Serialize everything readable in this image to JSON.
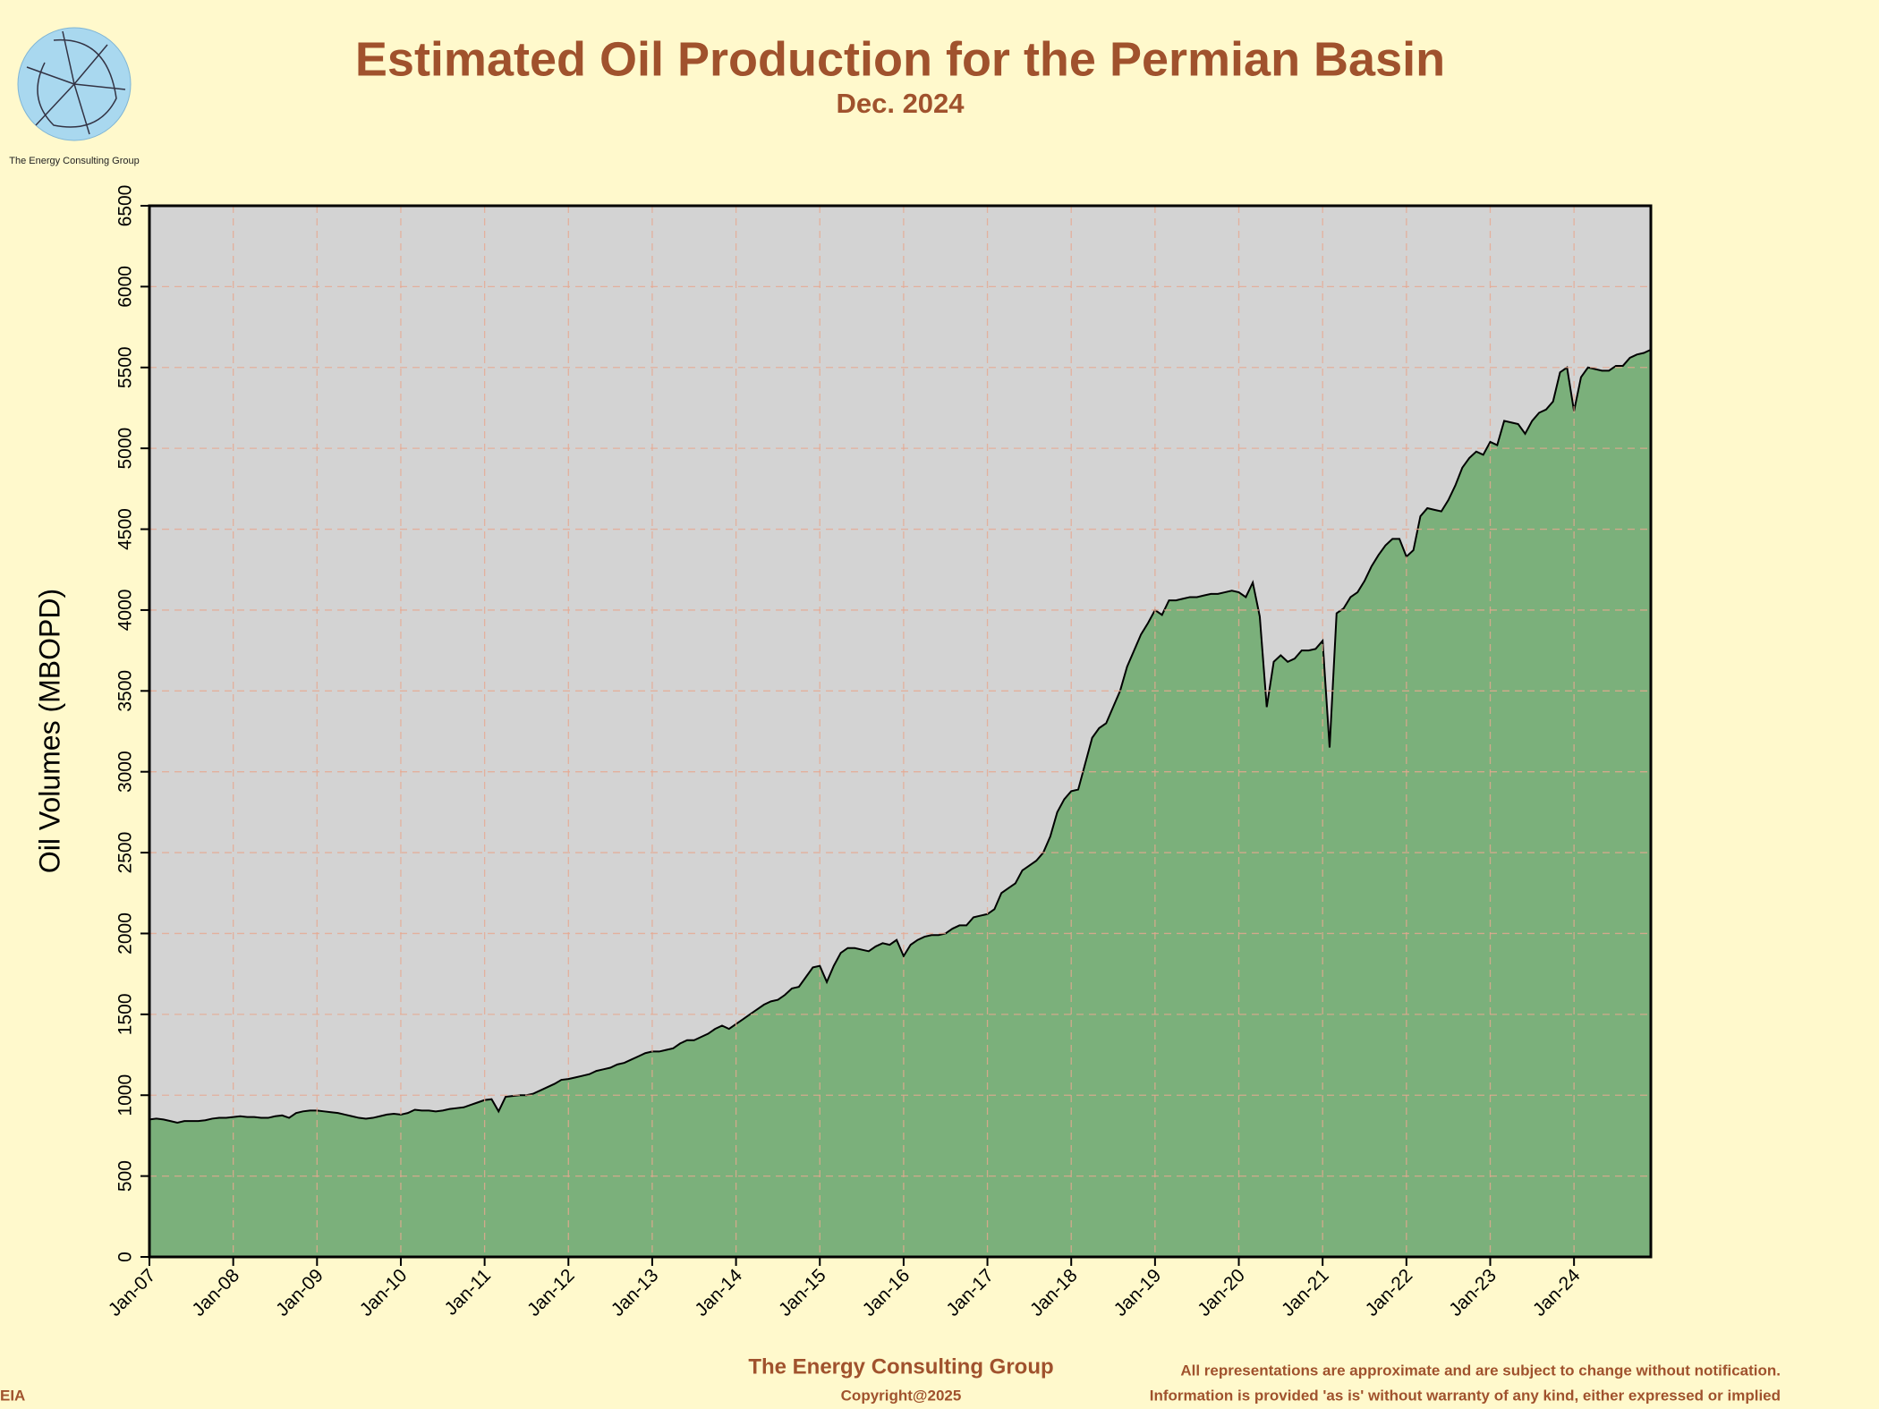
{
  "chart_data": {
    "type": "area",
    "title": "Estimated Oil Production for the Permian Basin",
    "subtitle": "Dec. 2024",
    "y_label": "Oil Volumes (MBOPD)",
    "color": "#7bb07b",
    "line_color": "#000000",
    "plot_background": "#d3d3d3",
    "grid": true,
    "ylim": [
      0,
      6500
    ],
    "yticks": [
      0,
      500,
      1000,
      1500,
      2000,
      2500,
      3000,
      3500,
      4000,
      4500,
      5000,
      5500,
      6000,
      6500
    ],
    "categories": [
      "Jan-07",
      null,
      null,
      null,
      null,
      null,
      null,
      null,
      null,
      null,
      null,
      null,
      "Jan-08",
      null,
      null,
      null,
      null,
      null,
      null,
      null,
      null,
      null,
      null,
      null,
      "Jan-09",
      null,
      null,
      null,
      null,
      null,
      null,
      null,
      null,
      null,
      null,
      null,
      "Jan-10",
      null,
      null,
      null,
      null,
      null,
      null,
      null,
      null,
      null,
      null,
      null,
      "Jan-11",
      null,
      null,
      null,
      null,
      null,
      null,
      null,
      null,
      null,
      null,
      null,
      "Jan-12",
      null,
      null,
      null,
      null,
      null,
      null,
      null,
      null,
      null,
      null,
      null,
      "Jan-13",
      null,
      null,
      null,
      null,
      null,
      null,
      null,
      null,
      null,
      null,
      null,
      "Jan-14",
      null,
      null,
      null,
      null,
      null,
      null,
      null,
      null,
      null,
      null,
      null,
      "Jan-15",
      null,
      null,
      null,
      null,
      null,
      null,
      null,
      null,
      null,
      null,
      null,
      "Jan-16",
      null,
      null,
      null,
      null,
      null,
      null,
      null,
      null,
      null,
      null,
      null,
      "Jan-17",
      null,
      null,
      null,
      null,
      null,
      null,
      null,
      null,
      null,
      null,
      null,
      "Jan-18",
      null,
      null,
      null,
      null,
      null,
      null,
      null,
      null,
      null,
      null,
      null,
      "Jan-19",
      null,
      null,
      null,
      null,
      null,
      null,
      null,
      null,
      null,
      null,
      null,
      "Jan-20",
      null,
      null,
      null,
      null,
      null,
      null,
      null,
      null,
      null,
      null,
      null,
      "Jan-21",
      null,
      null,
      null,
      null,
      null,
      null,
      null,
      null,
      null,
      null,
      null,
      "Jan-22",
      null,
      null,
      null,
      null,
      null,
      null,
      null,
      null,
      null,
      null,
      null,
      "Jan-23",
      null,
      null,
      null,
      null,
      null,
      null,
      null,
      null,
      null,
      null,
      null,
      "Jan-24",
      null,
      null,
      null,
      null,
      null,
      null,
      null,
      null,
      null,
      null,
      null
    ],
    "values": [
      850,
      855,
      850,
      840,
      830,
      840,
      840,
      840,
      845,
      855,
      860,
      860,
      865,
      870,
      865,
      865,
      860,
      860,
      870,
      875,
      860,
      890,
      900,
      905,
      905,
      900,
      895,
      890,
      880,
      870,
      860,
      855,
      860,
      870,
      880,
      885,
      880,
      890,
      910,
      905,
      905,
      900,
      905,
      915,
      920,
      925,
      940,
      955,
      970,
      975,
      900,
      990,
      995,
      1000,
      1000,
      1010,
      1030,
      1050,
      1070,
      1095,
      1100,
      1110,
      1120,
      1130,
      1150,
      1160,
      1170,
      1190,
      1200,
      1220,
      1240,
      1260,
      1270,
      1270,
      1280,
      1290,
      1320,
      1340,
      1340,
      1360,
      1380,
      1410,
      1430,
      1410,
      1440,
      1470,
      1500,
      1530,
      1560,
      1580,
      1590,
      1620,
      1660,
      1670,
      1730,
      1790,
      1800,
      1700,
      1800,
      1880,
      1910,
      1910,
      1900,
      1890,
      1920,
      1940,
      1930,
      1960,
      1860,
      1930,
      1960,
      1980,
      1990,
      1990,
      2000,
      2030,
      2050,
      2050,
      2100,
      2110,
      2120,
      2150,
      2250,
      2280,
      2310,
      2390,
      2420,
      2450,
      2500,
      2600,
      2750,
      2830,
      2880,
      2890,
      3050,
      3210,
      3270,
      3300,
      3400,
      3500,
      3650,
      3750,
      3850,
      3920,
      4000,
      3970,
      4060,
      4060,
      4070,
      4080,
      4080,
      4090,
      4100,
      4100,
      4110,
      4120,
      4110,
      4080,
      4170,
      3960,
      3400,
      3680,
      3720,
      3680,
      3700,
      3750,
      3750,
      3760,
      3810,
      3150,
      3980,
      4010,
      4080,
      4110,
      4180,
      4270,
      4340,
      4400,
      4440,
      4440,
      4330,
      4370,
      4580,
      4630,
      4620,
      4610,
      4680,
      4770,
      4880,
      4940,
      4980,
      4960,
      5040,
      5020,
      5170,
      5160,
      5150,
      5090,
      5170,
      5220,
      5240,
      5290,
      5470,
      5500,
      5230,
      5440,
      5500,
      5490,
      5480,
      5480,
      5510,
      5510,
      5560,
      5580,
      5590,
      5610
    ]
  },
  "logo_text": "The Energy Consulting Group",
  "footer": {
    "company": "The Energy Consulting Group",
    "copyright": "Copyright@2025",
    "disclaimer_1": "All representations are approximate and are subject to change without notification.",
    "disclaimer_2": "Information is provided 'as is' without warranty of any kind, either expressed or implied",
    "source": "EIA"
  }
}
